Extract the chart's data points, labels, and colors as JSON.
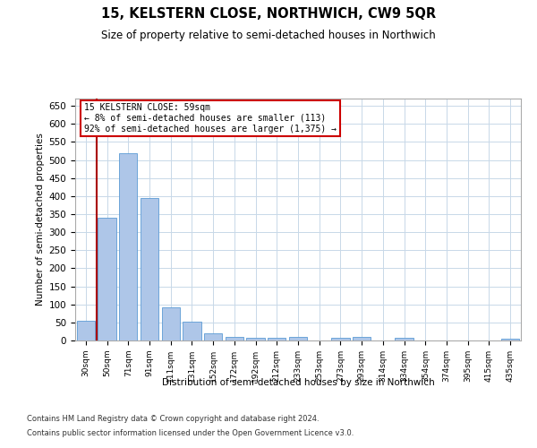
{
  "title": "15, KELSTERN CLOSE, NORTHWICH, CW9 5QR",
  "subtitle": "Size of property relative to semi-detached houses in Northwich",
  "xlabel": "Distribution of semi-detached houses by size in Northwich",
  "ylabel": "Number of semi-detached properties",
  "categories": [
    "30sqm",
    "50sqm",
    "71sqm",
    "91sqm",
    "111sqm",
    "131sqm",
    "152sqm",
    "172sqm",
    "192sqm",
    "212sqm",
    "233sqm",
    "253sqm",
    "273sqm",
    "293sqm",
    "314sqm",
    "334sqm",
    "354sqm",
    "374sqm",
    "395sqm",
    "415sqm",
    "435sqm"
  ],
  "values": [
    55,
    340,
    518,
    395,
    93,
    52,
    20,
    10,
    8,
    7,
    10,
    0,
    8,
    10,
    0,
    8,
    0,
    0,
    0,
    0,
    5
  ],
  "bar_color": "#aec6e8",
  "bar_edge_color": "#5b9bd5",
  "vline_x": 0.5,
  "vline_color": "#aa0000",
  "annotation_text_line1": "15 KELSTERN CLOSE: 59sqm",
  "annotation_text_line2": "← 8% of semi-detached houses are smaller (113)",
  "annotation_text_line3": "92% of semi-detached houses are larger (1,375) →",
  "annotation_box_facecolor": "#ffffff",
  "annotation_box_edgecolor": "#cc0000",
  "ylim_max": 670,
  "ytick_step": 50,
  "grid_color": "#c8d8e8",
  "bg_color": "#ffffff",
  "footnote1": "Contains HM Land Registry data © Crown copyright and database right 2024.",
  "footnote2": "Contains public sector information licensed under the Open Government Licence v3.0."
}
